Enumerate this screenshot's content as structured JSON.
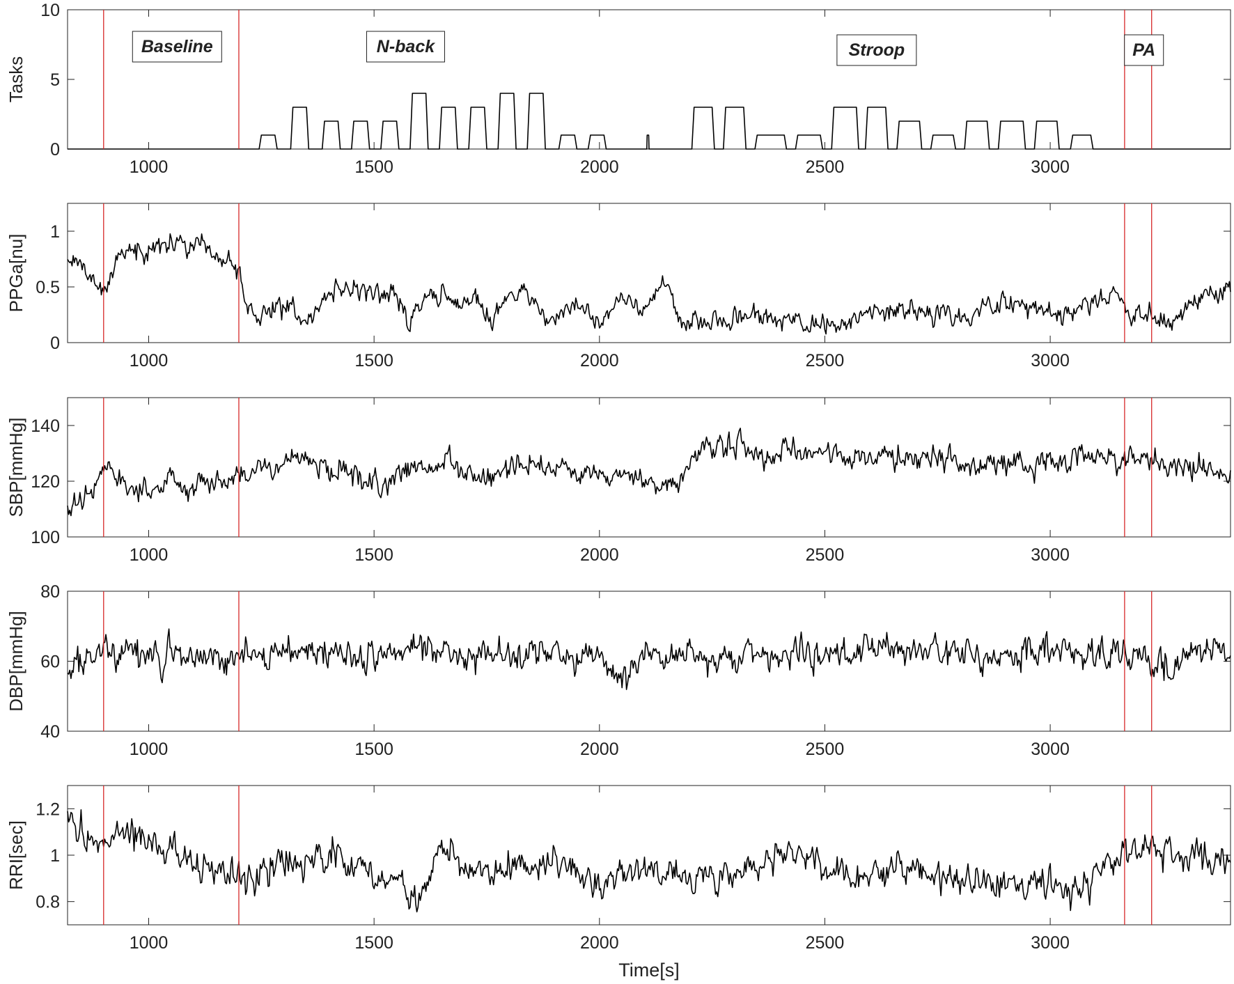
{
  "chart_data": [
    {
      "type": "line",
      "ylabel": "Tasks",
      "xlim": [
        820,
        3400
      ],
      "ylim": [
        0,
        10
      ],
      "xticks": [
        1000,
        1500,
        2000,
        2500,
        3000
      ],
      "yticks": [
        0,
        5,
        10
      ],
      "marker_times": [
        900,
        1200,
        3165,
        3225
      ],
      "annotations": [
        {
          "text": "Baseline",
          "x": 1063,
          "y": 7
        },
        {
          "text": "N-back",
          "x": 1570,
          "y": 7
        },
        {
          "text": "Stroop",
          "x": 2615,
          "y": 6.8
        },
        {
          "text": "PA",
          "x": 3208,
          "y": 6.8
        }
      ],
      "series": [
        {
          "color": "#000000",
          "step_blocks": [
            [
              1245,
              1285,
              1
            ],
            [
              1315,
              1355,
              3
            ],
            [
              1385,
              1425,
              2
            ],
            [
              1450,
              1490,
              2
            ],
            [
              1515,
              1555,
              2
            ],
            [
              1580,
              1620,
              4
            ],
            [
              1645,
              1685,
              3
            ],
            [
              1710,
              1750,
              3
            ],
            [
              1775,
              1815,
              4
            ],
            [
              1840,
              1880,
              4
            ],
            [
              1910,
              1950,
              1
            ],
            [
              1975,
              2015,
              1
            ],
            [
              2105,
              2110,
              1
            ],
            [
              2205,
              2255,
              3
            ],
            [
              2275,
              2325,
              3
            ],
            [
              2345,
              2415,
              1
            ],
            [
              2435,
              2495,
              1
            ],
            [
              2515,
              2575,
              3
            ],
            [
              2590,
              2640,
              3
            ],
            [
              2660,
              2715,
              2
            ],
            [
              2735,
              2790,
              1
            ],
            [
              2810,
              2865,
              2
            ],
            [
              2885,
              2945,
              2
            ],
            [
              2965,
              3020,
              2
            ],
            [
              3045,
              3095,
              1
            ]
          ]
        }
      ]
    },
    {
      "type": "line",
      "ylabel": "PPGa[nu]",
      "xlim": [
        820,
        3400
      ],
      "ylim": [
        0,
        1.25
      ],
      "xticks": [
        1000,
        1500,
        2000,
        2500,
        3000
      ],
      "yticks": [
        0,
        0.5,
        1
      ],
      "ytick_labels": [
        "0",
        "0.5",
        "1"
      ],
      "marker_times": [
        900,
        1200,
        3165,
        3225
      ],
      "series": [
        {
          "color": "#000000",
          "x": [
            820,
            900,
            940,
            1000,
            1050,
            1100,
            1150,
            1200,
            1215,
            1240,
            1300,
            1350,
            1400,
            1450,
            1500,
            1550,
            1580,
            1620,
            1680,
            1720,
            1760,
            1800,
            1850,
            1900,
            1950,
            2000,
            2050,
            2100,
            2150,
            2180,
            2220,
            2280,
            2340,
            2400,
            2460,
            2500,
            2550,
            2600,
            2650,
            2700,
            2750,
            2800,
            2850,
            2900,
            2950,
            3000,
            3050,
            3100,
            3150,
            3180,
            3220,
            3250,
            3300,
            3350,
            3400
          ],
          "y": [
            0.75,
            0.5,
            0.8,
            0.85,
            0.9,
            0.85,
            0.75,
            0.7,
            0.3,
            0.25,
            0.35,
            0.2,
            0.45,
            0.5,
            0.45,
            0.4,
            0.2,
            0.45,
            0.35,
            0.4,
            0.2,
            0.45,
            0.4,
            0.2,
            0.35,
            0.2,
            0.4,
            0.3,
            0.55,
            0.15,
            0.18,
            0.2,
            0.25,
            0.2,
            0.17,
            0.13,
            0.2,
            0.28,
            0.25,
            0.3,
            0.22,
            0.25,
            0.3,
            0.35,
            0.33,
            0.3,
            0.28,
            0.35,
            0.45,
            0.25,
            0.3,
            0.18,
            0.3,
            0.45,
            0.5
          ],
          "volatility": 0.09
        }
      ]
    },
    {
      "type": "line",
      "ylabel": "SBP[mmHg]",
      "xlim": [
        820,
        3400
      ],
      "ylim": [
        100,
        150
      ],
      "xticks": [
        1000,
        1500,
        2000,
        2500,
        3000
      ],
      "yticks": [
        100,
        120,
        140
      ],
      "marker_times": [
        900,
        1200,
        3165,
        3225
      ],
      "series": [
        {
          "color": "#000000",
          "x": [
            820,
            880,
            900,
            950,
            1000,
            1050,
            1100,
            1150,
            1200,
            1250,
            1300,
            1350,
            1400,
            1450,
            1500,
            1550,
            1600,
            1650,
            1700,
            1750,
            1800,
            1850,
            1900,
            1950,
            2000,
            2050,
            2100,
            2150,
            2180,
            2220,
            2260,
            2300,
            2350,
            2400,
            2450,
            2500,
            2550,
            2600,
            2650,
            2700,
            2750,
            2800,
            2850,
            2900,
            2950,
            3000,
            3050,
            3100,
            3150,
            3200,
            3250,
            3300,
            3350,
            3400
          ],
          "y": [
            110,
            118,
            128,
            118,
            116,
            120,
            118,
            120,
            122,
            124,
            126,
            128,
            124,
            122,
            120,
            122,
            124,
            126,
            124,
            122,
            124,
            126,
            124,
            122,
            120,
            122,
            120,
            118,
            120,
            130,
            133,
            133,
            128,
            130,
            130,
            130,
            128,
            130,
            128,
            128,
            128,
            126,
            126,
            126,
            126,
            128,
            128,
            128,
            128,
            130,
            126,
            126,
            124,
            122
          ],
          "volatility": 4.2
        }
      ]
    },
    {
      "type": "line",
      "ylabel": "DBP[mmHg]",
      "xlim": [
        820,
        3400
      ],
      "ylim": [
        40,
        80
      ],
      "xticks": [
        1000,
        1500,
        2000,
        2500,
        3000
      ],
      "yticks": [
        40,
        60,
        80
      ],
      "marker_times": [
        900,
        1200,
        3165,
        3225
      ],
      "series": [
        {
          "color": "#000000",
          "x": [
            820,
            900,
            1000,
            1100,
            1200,
            1300,
            1400,
            1500,
            1600,
            1700,
            1800,
            1900,
            2000,
            2050,
            2100,
            2200,
            2300,
            2400,
            2500,
            2600,
            2700,
            2800,
            2900,
            3000,
            3100,
            3200,
            3250,
            3300,
            3400
          ],
          "y": [
            57,
            63,
            62,
            61,
            62,
            63,
            62,
            62,
            63,
            62,
            62,
            62,
            61,
            55,
            61,
            62,
            61,
            62,
            62,
            63,
            62,
            62,
            62,
            63,
            63,
            62,
            58,
            61,
            63
          ],
          "volatility": 4.2
        }
      ]
    },
    {
      "type": "line",
      "ylabel": "RRI[sec]",
      "xlabel": "Time[s]",
      "xlim": [
        820,
        3400
      ],
      "ylim": [
        0.7,
        1.3
      ],
      "xticks": [
        1000,
        1500,
        2000,
        2500,
        3000
      ],
      "yticks": [
        0.8,
        1,
        1.2
      ],
      "ytick_labels": [
        "0.8",
        "1",
        "1.2"
      ],
      "marker_times": [
        900,
        1200,
        3165,
        3225
      ],
      "series": [
        {
          "color": "#000000",
          "x": [
            820,
            880,
            950,
            1000,
            1050,
            1100,
            1150,
            1200,
            1300,
            1400,
            1450,
            1500,
            1560,
            1600,
            1650,
            1700,
            1750,
            1800,
            1900,
            2000,
            2100,
            2200,
            2300,
            2400,
            2450,
            2500,
            2600,
            2700,
            2800,
            2900,
            3000,
            3050,
            3100,
            3150,
            3200,
            3300,
            3400
          ],
          "y": [
            1.15,
            1.05,
            1.1,
            1.05,
            1.02,
            0.95,
            0.92,
            0.9,
            0.95,
            1.02,
            0.95,
            0.9,
            0.88,
            0.78,
            1.02,
            0.96,
            0.95,
            0.95,
            0.98,
            0.9,
            0.93,
            0.9,
            0.92,
            1.02,
            0.98,
            0.92,
            0.9,
            0.95,
            0.88,
            0.92,
            0.88,
            0.85,
            0.92,
            1.0,
            1.02,
            1.0,
            0.98
          ],
          "volatility": 0.065
        }
      ]
    }
  ]
}
